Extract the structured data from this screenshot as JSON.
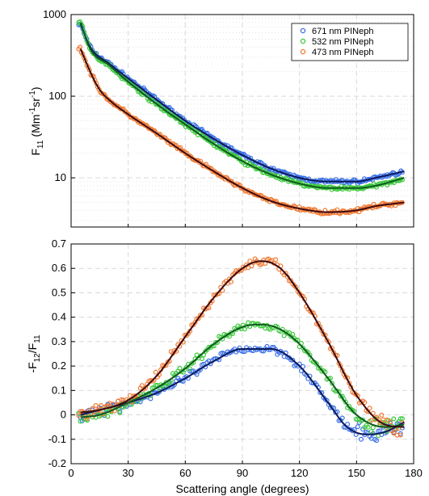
{
  "chart_data": [
    {
      "type": "scatter",
      "yscale": "log",
      "xlim": [
        0,
        180
      ],
      "ylim": [
        2.5,
        1000
      ],
      "grid": true,
      "legend_position": "top-right",
      "xticks": [
        0,
        30,
        60,
        90,
        120,
        150,
        180
      ],
      "ytick_labels": [
        "10",
        "100",
        "1000"
      ],
      "ylabel": {
        "base": "F",
        "sub": "11",
        "paren_open": "(Mm",
        "sup1": "-1",
        "mid": "sr",
        "sup2": "-1",
        "paren_close": ")"
      },
      "legend": [
        "671 nm PINeph",
        "532 nm PINeph",
        "473 nm PINeph"
      ],
      "series": [
        {
          "name": "671 nm PINeph",
          "color": "#3a6fe8",
          "fit_color": "#0d1a5c",
          "x": [
            5,
            10,
            20,
            30,
            45,
            60,
            75,
            90,
            105,
            120,
            135,
            150,
            160,
            175
          ],
          "y": [
            760,
            400,
            250,
            165,
            90,
            50,
            30,
            19,
            13,
            10,
            9,
            9,
            10,
            12
          ]
        },
        {
          "name": "532 nm PINeph",
          "color": "#3cc93c",
          "fit_color": "#0f5a1e",
          "x": [
            5,
            10,
            20,
            30,
            45,
            60,
            75,
            90,
            105,
            120,
            135,
            150,
            160,
            175
          ],
          "y": [
            800,
            380,
            240,
            150,
            80,
            45,
            26,
            16,
            11,
            8.5,
            7.5,
            7.5,
            8,
            10
          ]
        },
        {
          "name": "473 nm PINeph",
          "color": "#f07830",
          "fit_color": "#3d0a10",
          "x": [
            5,
            10,
            15,
            20,
            30,
            45,
            60,
            75,
            90,
            105,
            120,
            135,
            150,
            160,
            175
          ],
          "y": [
            380,
            200,
            120,
            90,
            60,
            35,
            20,
            12,
            7.5,
            5.2,
            4.2,
            3.8,
            4,
            4.5,
            5
          ]
        }
      ]
    },
    {
      "type": "scatter",
      "xlim": [
        0,
        180
      ],
      "ylim": [
        -0.2,
        0.7
      ],
      "grid": true,
      "xticks": [
        0,
        30,
        60,
        90,
        120,
        150,
        180
      ],
      "yticks": [
        -0.2,
        -0.1,
        0,
        0.1,
        0.2,
        0.3,
        0.4,
        0.5,
        0.6,
        0.7
      ],
      "ytick_labels": [
        "-0.2",
        "-0.1",
        "0",
        "0.1",
        "0.2",
        "0.3",
        "0.4",
        "0.5",
        "0.6",
        "0.7"
      ],
      "xlabel": "Scattering angle (degrees)",
      "ylabel": {
        "pre": "-F",
        "sub1": "12",
        "mid": "/F",
        "sub2": "11"
      },
      "series": [
        {
          "name": "671 nm PINeph",
          "color": "#3a6fe8",
          "fit_color": "#0d1a5c",
          "x": [
            5,
            15,
            30,
            45,
            60,
            75,
            90,
            105,
            120,
            135,
            145,
            155,
            165,
            175
          ],
          "y": [
            0.0,
            0.02,
            0.05,
            0.09,
            0.15,
            0.22,
            0.27,
            0.27,
            0.2,
            0.05,
            -0.05,
            -0.08,
            -0.07,
            -0.03
          ]
        },
        {
          "name": "532 nm PINeph",
          "color": "#3cc93c",
          "fit_color": "#0f5a1e",
          "x": [
            5,
            15,
            30,
            45,
            60,
            75,
            90,
            100,
            110,
            120,
            135,
            150,
            165,
            175
          ],
          "y": [
            -0.01,
            0.0,
            0.05,
            0.11,
            0.19,
            0.29,
            0.36,
            0.37,
            0.35,
            0.29,
            0.15,
            0.0,
            -0.05,
            -0.04
          ]
        },
        {
          "name": "473 nm PINeph",
          "color": "#f07830",
          "fit_color": "#3d0a10",
          "x": [
            5,
            15,
            30,
            45,
            60,
            75,
            90,
            100,
            110,
            120,
            135,
            150,
            165,
            175
          ],
          "y": [
            0.01,
            0.02,
            0.06,
            0.16,
            0.32,
            0.48,
            0.6,
            0.63,
            0.6,
            0.5,
            0.3,
            0.08,
            -0.04,
            -0.05
          ]
        }
      ]
    }
  ]
}
